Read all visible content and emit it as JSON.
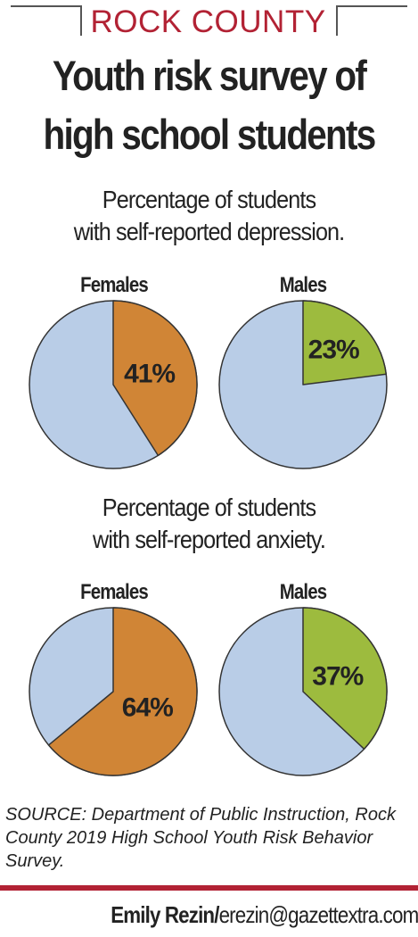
{
  "header": {
    "kicker": "ROCK COUNTY",
    "headline_line1": "Youth risk survey of",
    "headline_line2": "high school students"
  },
  "colors": {
    "kicker": "#b22234",
    "rule": "#b22234",
    "female_slice": "#d08536",
    "male_slice": "#9dbb3e",
    "remainder": "#b9cde7",
    "outline": "#333333"
  },
  "chart_data": [
    {
      "type": "pie",
      "title": "Percentage of students with self-reported depression.",
      "title_line1": "Percentage of students",
      "title_line2": "with self-reported depression.",
      "pies": [
        {
          "label": "Females",
          "value": 41,
          "value_label": "41%"
        },
        {
          "label": "Males",
          "value": 23,
          "value_label": "23%"
        }
      ]
    },
    {
      "type": "pie",
      "title": "Percentage of students with self-reported anxiety.",
      "title_line1": "Percentage of students",
      "title_line2": "with self-reported anxiety.",
      "pies": [
        {
          "label": "Females",
          "value": 64,
          "value_label": "64%"
        },
        {
          "label": "Males",
          "value": 37,
          "value_label": "37%"
        }
      ]
    }
  ],
  "source": "SOURCE: Department of Public Instruction, Rock County 2019 High School Youth Risk Behavior Survey.",
  "credit": {
    "name": "Emily Rezin/",
    "email": "erezin@gazettextra.com"
  }
}
